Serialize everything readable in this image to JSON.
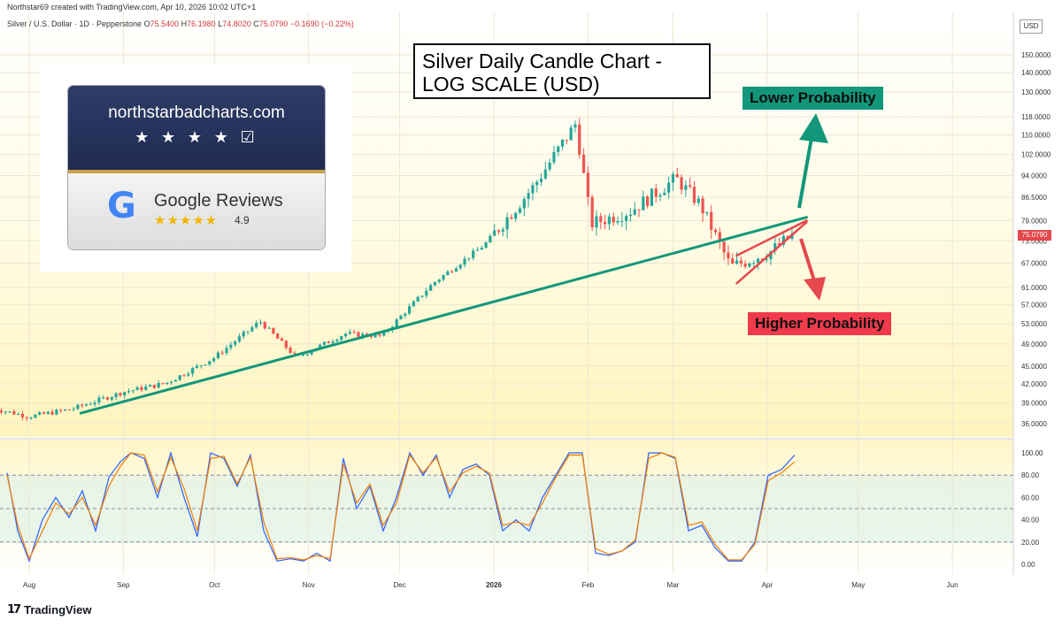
{
  "header": {
    "text": "Northstar69 created with TradingView.com, Apr 10, 2026 10:02 UTC+1"
  },
  "legend": {
    "symbol": "Silver / U.S. Dollar · 1D · Pepperstone",
    "o_label": "O",
    "o": "75.5400",
    "h_label": "H",
    "h": "76.1980",
    "l_label": "L",
    "l": "74.8020",
    "c_label": "C",
    "c": "75.0790",
    "chg": "−0.1690 (−0.22%)"
  },
  "currency_label": "USD",
  "last_price": "75.0790",
  "annotations": {
    "title": "Silver Daily Candle Chart - LOG SCALE (USD)",
    "lower": "Lower Probability",
    "higher": "Higher Probability"
  },
  "badge": {
    "site": "northstarbadcharts.com",
    "stars": "★ ★ ★ ★ ☑",
    "google_g": "G",
    "google_reviews": "Google Reviews",
    "google_stars": "★★★★★",
    "rating": "4.9"
  },
  "branding": {
    "logo_mark": "17",
    "name": "TradingView"
  },
  "chart_data": [
    {
      "type": "candlestick",
      "title": "",
      "scale": "log",
      "ylim": [
        34.5,
        158
      ],
      "y_ticks": [
        "150.0000",
        "140.0000",
        "130.0000",
        "118.0000",
        "110.0000",
        "102.0000",
        "94.0000",
        "86.5000",
        "79.0000",
        "73.0000",
        "67.0000",
        "61.0000",
        "57.0000",
        "53.0000",
        "49.0000",
        "45.0000",
        "42.0000",
        "39.0000",
        "36.0000"
      ],
      "x_ticks": [
        "Aug",
        "Sep",
        "Oct",
        "Nov",
        "Dec",
        "2026",
        "Feb",
        "Mar",
        "Apr",
        "May",
        "Jun"
      ],
      "key_closes": [
        {
          "date": "2025-07-20",
          "close": 38.2
        },
        {
          "date": "2025-08-01",
          "close": 37.0
        },
        {
          "date": "2025-08-15",
          "close": 38.1
        },
        {
          "date": "2025-09-01",
          "close": 40.7
        },
        {
          "date": "2025-09-15",
          "close": 42.1
        },
        {
          "date": "2025-10-01",
          "close": 46.5
        },
        {
          "date": "2025-10-16",
          "close": 53.5
        },
        {
          "date": "2025-10-28",
          "close": 46.5
        },
        {
          "date": "2025-11-13",
          "close": 51.0
        },
        {
          "date": "2025-11-25",
          "close": 50.5
        },
        {
          "date": "2025-12-12",
          "close": 62.0
        },
        {
          "date": "2025-12-29",
          "close": 72.0
        },
        {
          "date": "2026-01-14",
          "close": 90.0
        },
        {
          "date": "2026-01-28",
          "close": 115.0
        },
        {
          "date": "2026-02-02",
          "close": 78.0
        },
        {
          "date": "2026-02-15",
          "close": 82.0
        },
        {
          "date": "2026-03-02",
          "close": 93.0
        },
        {
          "date": "2026-03-10",
          "close": 84.0
        },
        {
          "date": "2026-03-20",
          "close": 66.0
        },
        {
          "date": "2026-04-02",
          "close": 70.0
        },
        {
          "date": "2026-04-10",
          "close": 75.08
        }
      ],
      "trendlines": [
        {
          "name": "support",
          "color": "#13977a",
          "from": {
            "date": "2025-08-18",
            "value": 37.5
          },
          "to": {
            "date": "2026-04-14",
            "value": 80.0
          }
        },
        {
          "name": "wedge-upper",
          "color": "#e5484d",
          "from": {
            "date": "2026-03-22",
            "value": 69.0
          },
          "to": {
            "date": "2026-04-14",
            "value": 79.0
          }
        },
        {
          "name": "wedge-lower",
          "color": "#e5484d",
          "from": {
            "date": "2026-03-22",
            "value": 62.0
          },
          "to": {
            "date": "2026-04-14",
            "value": 78.5
          }
        }
      ],
      "grid": true
    },
    {
      "type": "line",
      "title": "",
      "ylim": [
        0,
        100
      ],
      "y_ticks": [
        "100.00",
        "80.00",
        "60.00",
        "40.00",
        "20.00",
        "0.00"
      ],
      "levels": [
        80,
        50,
        20
      ],
      "series": [
        {
          "color": "#2962ff",
          "points": [
            [
              0,
              82
            ],
            [
              12,
              30
            ],
            [
              25,
              3
            ],
            [
              40,
              40
            ],
            [
              55,
              60
            ],
            [
              70,
              42
            ],
            [
              85,
              66
            ],
            [
              100,
              30
            ],
            [
              115,
              78
            ],
            [
              128,
              92
            ],
            [
              140,
              100
            ],
            [
              155,
              95
            ],
            [
              170,
              60
            ],
            [
              185,
              100
            ],
            [
              200,
              60
            ],
            [
              215,
              25
            ],
            [
              230,
              100
            ],
            [
              245,
              95
            ],
            [
              260,
              70
            ],
            [
              275,
              98
            ],
            [
              290,
              30
            ],
            [
              305,
              3
            ],
            [
              320,
              5
            ],
            [
              335,
              3
            ],
            [
              350,
              10
            ],
            [
              365,
              3
            ],
            [
              380,
              95
            ],
            [
              395,
              50
            ],
            [
              410,
              70
            ],
            [
              425,
              30
            ],
            [
              440,
              60
            ],
            [
              455,
              100
            ],
            [
              470,
              80
            ],
            [
              485,
              98
            ],
            [
              500,
              60
            ],
            [
              515,
              85
            ],
            [
              530,
              90
            ],
            [
              545,
              80
            ],
            [
              560,
              30
            ],
            [
              575,
              40
            ],
            [
              590,
              30
            ],
            [
              605,
              60
            ],
            [
              620,
              80
            ],
            [
              635,
              100
            ],
            [
              650,
              100
            ],
            [
              665,
              10
            ],
            [
              680,
              8
            ],
            [
              695,
              12
            ],
            [
              710,
              20
            ],
            [
              725,
              100
            ],
            [
              740,
              100
            ],
            [
              755,
              95
            ],
            [
              770,
              30
            ],
            [
              785,
              35
            ],
            [
              800,
              15
            ],
            [
              815,
              3
            ],
            [
              830,
              3
            ],
            [
              845,
              20
            ],
            [
              860,
              80
            ],
            [
              875,
              85
            ],
            [
              890,
              98
            ]
          ]
        },
        {
          "color": "#f57c00",
          "points": [
            [
              0,
              80
            ],
            [
              12,
              35
            ],
            [
              25,
              5
            ],
            [
              40,
              30
            ],
            [
              55,
              55
            ],
            [
              70,
              45
            ],
            [
              85,
              60
            ],
            [
              100,
              35
            ],
            [
              115,
              70
            ],
            [
              128,
              88
            ],
            [
              140,
              100
            ],
            [
              155,
              98
            ],
            [
              170,
              65
            ],
            [
              185,
              96
            ],
            [
              200,
              68
            ],
            [
              215,
              30
            ],
            [
              230,
              95
            ],
            [
              245,
              97
            ],
            [
              260,
              72
            ],
            [
              275,
              96
            ],
            [
              290,
              38
            ],
            [
              305,
              5
            ],
            [
              320,
              6
            ],
            [
              335,
              4
            ],
            [
              350,
              8
            ],
            [
              365,
              5
            ],
            [
              380,
              90
            ],
            [
              395,
              55
            ],
            [
              410,
              72
            ],
            [
              425,
              35
            ],
            [
              440,
              55
            ],
            [
              455,
              98
            ],
            [
              470,
              82
            ],
            [
              485,
              96
            ],
            [
              500,
              65
            ],
            [
              515,
              82
            ],
            [
              530,
              88
            ],
            [
              545,
              82
            ],
            [
              560,
              35
            ],
            [
              575,
              38
            ],
            [
              590,
              35
            ],
            [
              605,
              55
            ],
            [
              620,
              78
            ],
            [
              635,
              98
            ],
            [
              650,
              98
            ],
            [
              665,
              14
            ],
            [
              680,
              9
            ],
            [
              695,
              12
            ],
            [
              710,
              22
            ],
            [
              725,
              95
            ],
            [
              740,
              100
            ],
            [
              755,
              96
            ],
            [
              770,
              35
            ],
            [
              785,
              38
            ],
            [
              800,
              18
            ],
            [
              815,
              4
            ],
            [
              830,
              4
            ],
            [
              845,
              18
            ],
            [
              860,
              75
            ],
            [
              875,
              82
            ],
            [
              890,
              92
            ]
          ]
        }
      ]
    }
  ]
}
